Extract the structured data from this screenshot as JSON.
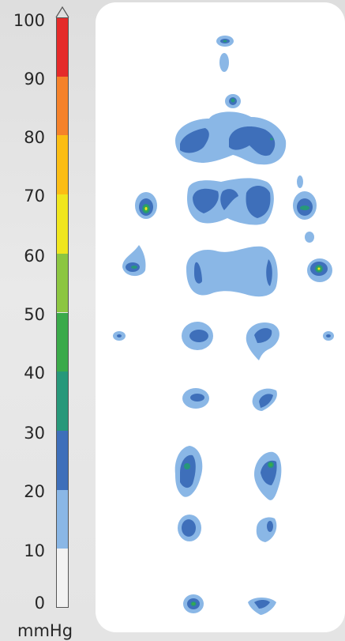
{
  "legend": {
    "ticks": [
      "100",
      "90",
      "80",
      "70",
      "60",
      "50",
      "40",
      "30",
      "20",
      "10",
      "0"
    ],
    "unit": "mmHg",
    "bands": [
      {
        "from": 0,
        "to": 10,
        "color": "#f2f2f2"
      },
      {
        "from": 10,
        "to": 20,
        "color": "#8ab7e6"
      },
      {
        "from": 20,
        "to": 30,
        "color": "#3e6fba"
      },
      {
        "from": 30,
        "to": 40,
        "color": "#27987a"
      },
      {
        "from": 40,
        "to": 50,
        "color": "#3aaa4a"
      },
      {
        "from": 50,
        "to": 60,
        "color": "#8cc641"
      },
      {
        "from": 60,
        "to": 70,
        "color": "#f0e61e"
      },
      {
        "from": 70,
        "to": 80,
        "color": "#fbbd14"
      },
      {
        "from": 80,
        "to": 90,
        "color": "#f5822a"
      },
      {
        "from": 90,
        "to": 100,
        "color": "#e52b2a"
      }
    ]
  },
  "colors": {
    "light": "#8ab7e6",
    "mid": "#3e6fba",
    "teal": "#27987a",
    "green": "#3aaa4a",
    "yellow": "#f0e61e"
  }
}
